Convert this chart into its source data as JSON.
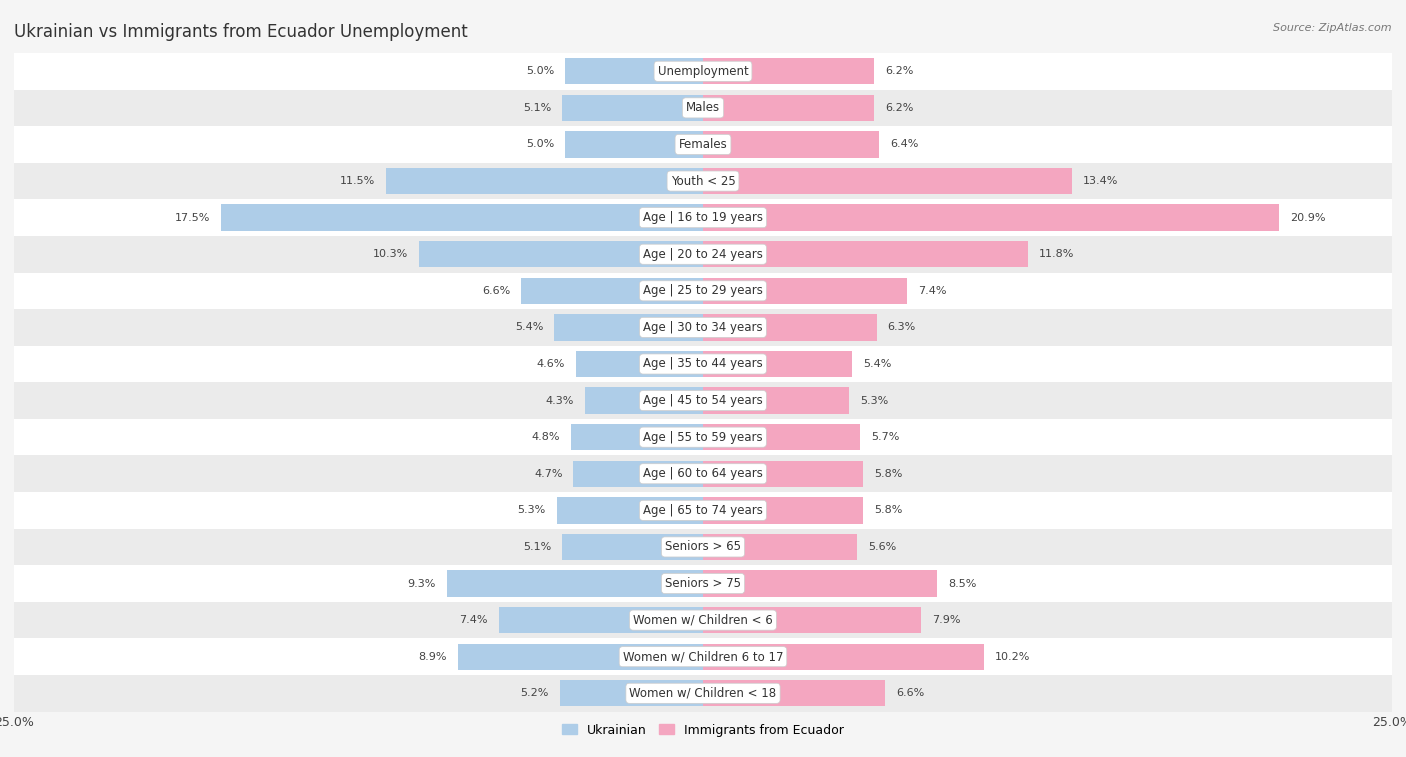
{
  "title": "Ukrainian vs Immigrants from Ecuador Unemployment",
  "source": "Source: ZipAtlas.com",
  "categories": [
    "Unemployment",
    "Males",
    "Females",
    "Youth < 25",
    "Age | 16 to 19 years",
    "Age | 20 to 24 years",
    "Age | 25 to 29 years",
    "Age | 30 to 34 years",
    "Age | 35 to 44 years",
    "Age | 45 to 54 years",
    "Age | 55 to 59 years",
    "Age | 60 to 64 years",
    "Age | 65 to 74 years",
    "Seniors > 65",
    "Seniors > 75",
    "Women w/ Children < 6",
    "Women w/ Children 6 to 17",
    "Women w/ Children < 18"
  ],
  "ukrainian_values": [
    5.0,
    5.1,
    5.0,
    11.5,
    17.5,
    10.3,
    6.6,
    5.4,
    4.6,
    4.3,
    4.8,
    4.7,
    5.3,
    5.1,
    9.3,
    7.4,
    8.9,
    5.2
  ],
  "ecuador_values": [
    6.2,
    6.2,
    6.4,
    13.4,
    20.9,
    11.8,
    7.4,
    6.3,
    5.4,
    5.3,
    5.7,
    5.8,
    5.8,
    5.6,
    8.5,
    7.9,
    10.2,
    6.6
  ],
  "ukrainian_color": "#aecde8",
  "ecuador_color": "#f4a6c0",
  "bar_height": 0.72,
  "xlim": 25.0,
  "bg_color": "#f5f5f5",
  "row_color_light": "#ffffff",
  "row_color_dark": "#ebebeb",
  "title_fontsize": 12,
  "label_fontsize": 8.5,
  "value_fontsize": 8,
  "legend_fontsize": 9,
  "source_fontsize": 8
}
